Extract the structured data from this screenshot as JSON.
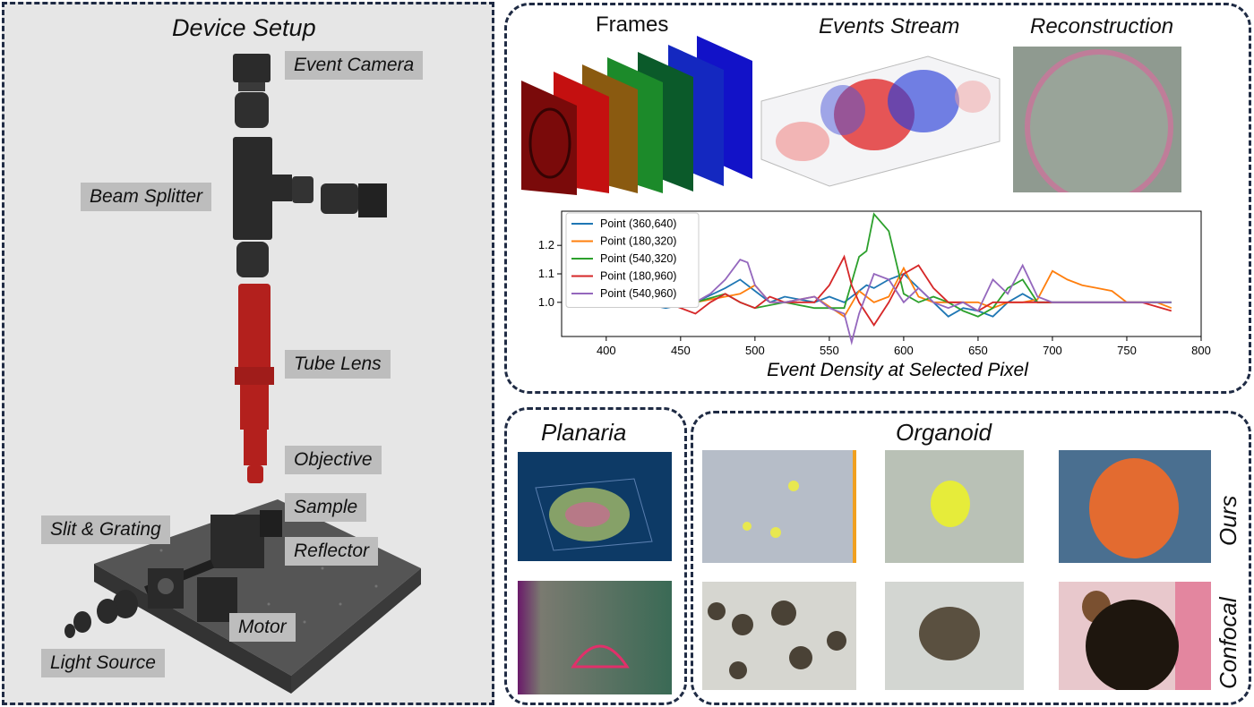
{
  "device": {
    "title": "Device Setup",
    "labels": {
      "event_camera": "Event Camera",
      "beam_splitter": "Beam Splitter",
      "tube_lens": "Tube Lens",
      "objective": "Objective",
      "sample": "Sample",
      "slit_grating": "Slit & Grating",
      "reflector": "Reflector",
      "motor": "Motor",
      "light_source": "Light Source"
    }
  },
  "pipeline": {
    "frames": "Frames",
    "events": "Events Stream",
    "reconstruction": "Reconstruction"
  },
  "chart_data": {
    "type": "line",
    "xlabel": "Event Density at Selected Pixel",
    "ylabel": "",
    "xlim": [
      370,
      800
    ],
    "ylim": [
      0.88,
      1.32
    ],
    "xticks": [
      400,
      450,
      500,
      550,
      600,
      650,
      700,
      750,
      800
    ],
    "yticks": [
      1.0,
      1.1,
      1.2
    ],
    "legend": "top-left",
    "series": [
      {
        "name": "Point (360,640)",
        "color": "#1f77b4",
        "x": [
          400,
          420,
          440,
          460,
          480,
          490,
          500,
          510,
          520,
          540,
          550,
          560,
          570,
          575,
          580,
          590,
          600,
          610,
          620,
          630,
          640,
          650,
          660,
          670,
          680,
          690,
          700,
          720,
          740,
          760,
          780
        ],
        "y": [
          1.0,
          1.0,
          0.98,
          1.0,
          1.05,
          1.08,
          1.04,
          1.0,
          1.02,
          1.0,
          1.02,
          1.0,
          1.04,
          1.06,
          1.05,
          1.08,
          1.1,
          1.05,
          1.0,
          0.95,
          0.98,
          0.97,
          0.95,
          1.0,
          1.03,
          1.0,
          1.0,
          1.0,
          1.0,
          1.0,
          1.0
        ]
      },
      {
        "name": "Point (180,320)",
        "color": "#ff7f0e",
        "x": [
          400,
          420,
          440,
          460,
          480,
          490,
          500,
          510,
          520,
          540,
          560,
          570,
          580,
          590,
          600,
          610,
          620,
          630,
          640,
          650,
          660,
          670,
          680,
          690,
          700,
          710,
          720,
          730,
          740,
          750,
          760,
          770,
          780
        ],
        "y": [
          1.0,
          1.0,
          1.0,
          1.0,
          1.02,
          1.03,
          1.06,
          1.0,
          1.0,
          1.02,
          0.95,
          1.04,
          1.0,
          1.02,
          1.12,
          1.02,
          1.0,
          1.0,
          1.0,
          1.0,
          0.98,
          1.0,
          1.0,
          1.01,
          1.11,
          1.08,
          1.06,
          1.05,
          1.04,
          1.0,
          1.0,
          1.0,
          0.98
        ]
      },
      {
        "name": "Point (540,320)",
        "color": "#2ca02c",
        "x": [
          400,
          420,
          440,
          460,
          480,
          490,
          500,
          520,
          540,
          560,
          570,
          575,
          580,
          590,
          600,
          610,
          620,
          630,
          640,
          650,
          660,
          670,
          680,
          690,
          700,
          720,
          740,
          760,
          780
        ],
        "y": [
          1.0,
          1.0,
          0.99,
          1.0,
          1.03,
          1.0,
          0.98,
          1.0,
          0.98,
          0.98,
          1.16,
          1.18,
          1.31,
          1.25,
          1.03,
          1.0,
          1.02,
          1.0,
          0.97,
          0.95,
          0.98,
          1.05,
          1.08,
          1.0,
          1.0,
          1.0,
          1.0,
          1.0,
          1.0
        ]
      },
      {
        "name": "Point (180,960)",
        "color": "#d62728",
        "x": [
          400,
          420,
          440,
          460,
          470,
          480,
          490,
          500,
          510,
          520,
          540,
          550,
          560,
          565,
          570,
          580,
          590,
          600,
          610,
          620,
          630,
          640,
          650,
          660,
          670,
          680,
          690,
          700,
          720,
          740,
          760,
          780
        ],
        "y": [
          1.0,
          1.0,
          1.0,
          0.96,
          1.0,
          1.03,
          1.0,
          0.98,
          1.02,
          1.0,
          1.0,
          1.06,
          1.16,
          1.06,
          1.0,
          0.92,
          1.0,
          1.1,
          1.13,
          1.05,
          1.0,
          1.0,
          0.97,
          1.0,
          1.0,
          1.0,
          1.0,
          1.0,
          1.0,
          1.0,
          1.0,
          0.97
        ]
      },
      {
        "name": "Point (540,960)",
        "color": "#9467bd",
        "x": [
          400,
          420,
          440,
          460,
          470,
          480,
          490,
          495,
          500,
          510,
          520,
          540,
          550,
          560,
          565,
          570,
          580,
          590,
          600,
          610,
          620,
          630,
          640,
          650,
          660,
          670,
          680,
          690,
          700,
          720,
          740,
          760,
          780
        ],
        "y": [
          1.0,
          1.0,
          1.0,
          1.0,
          1.03,
          1.08,
          1.15,
          1.14,
          1.06,
          1.0,
          1.0,
          1.02,
          0.98,
          0.96,
          0.86,
          0.96,
          1.1,
          1.08,
          1.0,
          1.05,
          1.0,
          0.98,
          1.0,
          0.97,
          1.08,
          1.03,
          1.13,
          1.02,
          1.0,
          1.0,
          1.0,
          1.0,
          1.0
        ]
      }
    ]
  },
  "planaria": {
    "title": "Planaria"
  },
  "organoid": {
    "title": "Organoid",
    "row_ours": "Ours",
    "row_confocal": "Confocal"
  }
}
